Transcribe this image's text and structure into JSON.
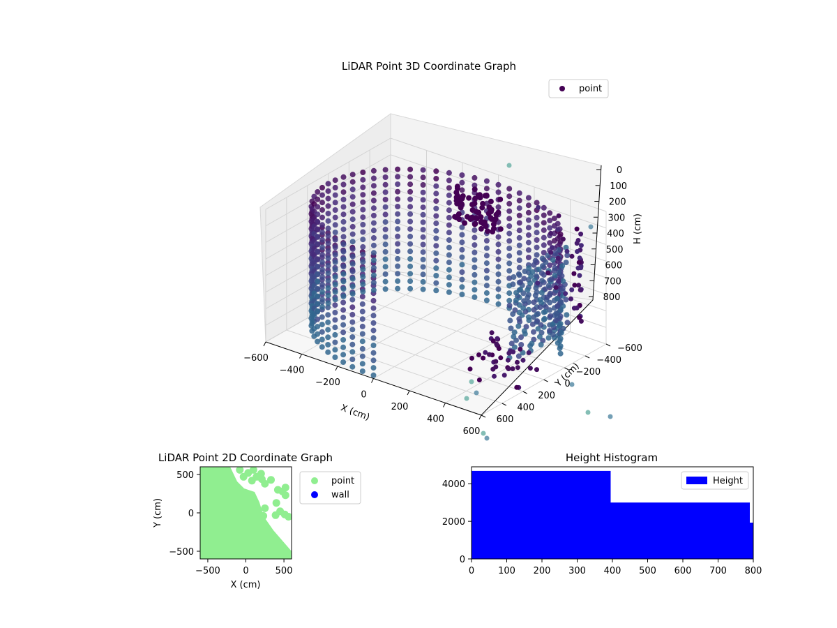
{
  "chart_data": [
    {
      "type": "scatter",
      "projection": "3d",
      "title": "LiDAR Point 3D Coordinate Graph",
      "xlabel": "X (cm)",
      "ylabel": "Y (cm)",
      "zlabel": "H (cm)",
      "xlim": [
        -600,
        600
      ],
      "ylim": [
        -600,
        600
      ],
      "zlim": [
        0,
        800
      ],
      "z_inverted": true,
      "x_ticks": [
        -600,
        -400,
        -200,
        0,
        200,
        400,
        600
      ],
      "y_ticks": [
        -600,
        -400,
        -200,
        0,
        200,
        400,
        600
      ],
      "z_ticks": [
        0,
        100,
        200,
        300,
        400,
        500,
        600,
        700,
        800
      ],
      "grid": true,
      "legend": {
        "position": "top-right",
        "entries": [
          "point"
        ]
      },
      "colors": {
        "point_dark": "#440154",
        "point_mid": "#3b528b",
        "point_light": "#5ec962",
        "pane": "#f2f2f2",
        "grid": "#d0d0d0"
      },
      "series": [
        {
          "name": "point",
          "colormap": "viridis",
          "description_points": [
            {
              "x": -600,
              "y": 0,
              "z": 400
            },
            {
              "x": -300,
              "y": 500,
              "z": 300
            },
            {
              "x": 100,
              "y": 500,
              "z": 100
            },
            {
              "x": 300,
              "y": 300,
              "z": 600
            },
            {
              "x": 550,
              "y": 0,
              "z": 500
            },
            {
              "x": 450,
              "y": -500,
              "z": 700
            }
          ]
        }
      ]
    },
    {
      "type": "scatter",
      "title": "LiDAR Point 2D Coordinate Graph",
      "xlabel": "X (cm)",
      "ylabel": "Y (cm)",
      "xlim": [
        -600,
        600
      ],
      "ylim": [
        -600,
        600
      ],
      "x_ticks": [
        -500,
        0,
        500
      ],
      "y_ticks": [
        -500,
        0,
        500
      ],
      "legend": {
        "position": "outside-right",
        "entries": [
          "point",
          "wall"
        ]
      },
      "series": [
        {
          "name": "point",
          "color": "#90ee90"
        },
        {
          "name": "wall",
          "color": "#0000ff"
        }
      ]
    },
    {
      "type": "bar",
      "subtype": "histogram",
      "title": "Height Histogram",
      "xlim": [
        0,
        800
      ],
      "ylim": [
        0,
        4900
      ],
      "x_ticks": [
        0,
        100,
        200,
        300,
        400,
        500,
        600,
        700,
        800
      ],
      "y_ticks": [
        0,
        2000,
        4000
      ],
      "legend": {
        "position": "top-right",
        "entries": [
          "Height"
        ]
      },
      "series": [
        {
          "name": "Height",
          "color": "#0000ff",
          "bins": [
            {
              "start": 0,
              "end": 395,
              "count": 4680
            },
            {
              "start": 395,
              "end": 790,
              "count": 3000
            },
            {
              "start": 790,
              "end": 800,
              "count": 1930
            }
          ]
        }
      ]
    }
  ]
}
